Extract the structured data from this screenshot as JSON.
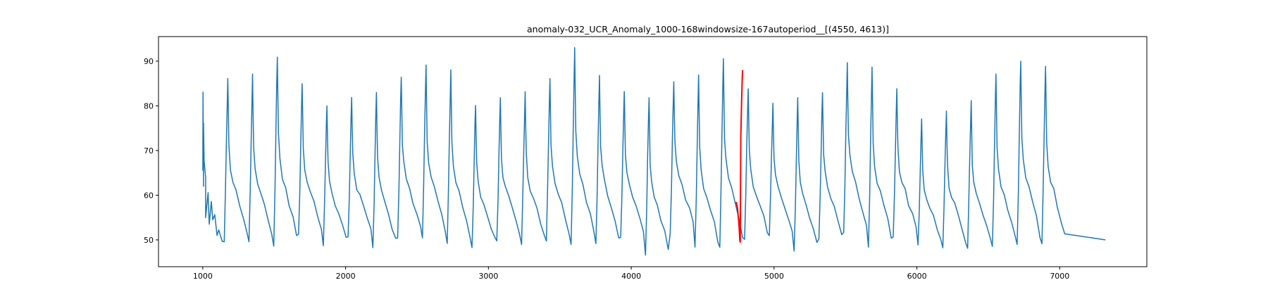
{
  "chart_data": {
    "type": "line",
    "title": "anomaly-032_UCR_Anomaly_1000-168windowsize-167autoperiod__[(4550, 4613)]",
    "xlabel": "",
    "ylabel": "",
    "xlim": [
      690,
      7610
    ],
    "ylim": [
      44.0,
      95.5
    ],
    "xticks": [
      1000,
      2000,
      3000,
      4000,
      5000,
      6000,
      7000
    ],
    "yticks": [
      50,
      60,
      70,
      80,
      90
    ],
    "grid": false,
    "legend": "none",
    "series": [
      {
        "color": "#1f77b4",
        "cycle_start": 1000,
        "cycle_length": 173.5,
        "cycle_peaks": [
          83,
          86,
          87,
          91,
          85,
          80,
          82,
          83,
          86.5,
          89,
          88,
          80,
          82,
          83,
          86,
          93,
          87,
          83,
          82,
          85.5,
          87,
          90.5,
          84,
          80.5,
          82,
          83,
          89.5,
          88.5,
          84,
          77,
          79,
          81,
          87,
          90,
          89
        ],
        "cycle_troughs": [
          47.5,
          50,
          49,
          49,
          51,
          49,
          50.5,
          48,
          51,
          50,
          49,
          48.5,
          50,
          49,
          50,
          49,
          49,
          50,
          46.5,
          52,
          48,
          49,
          50,
          51,
          47,
          50,
          51,
          49,
          51,
          49,
          48.5,
          48.5,
          48.5,
          49,
          49
        ],
        "end_x": 7320,
        "end_y": 50
      },
      {
        "color": "#ff0000",
        "x": [
          4735,
          4745,
          4750,
          4755,
          4760,
          4763,
          4767,
          4772,
          4777,
          4780
        ],
        "y": [
          58.5,
          57,
          55,
          53,
          50,
          49.5,
          73,
          80,
          86,
          88
        ]
      }
    ]
  }
}
